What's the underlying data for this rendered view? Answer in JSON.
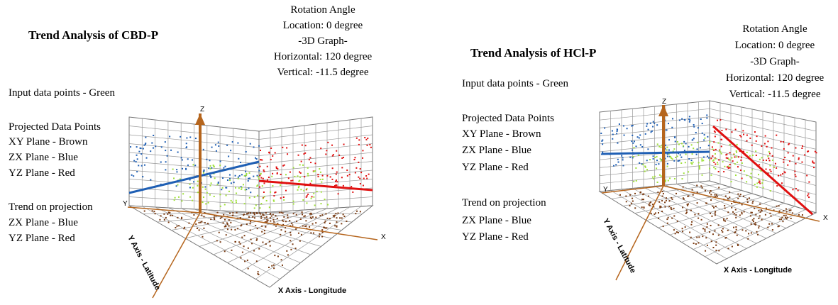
{
  "panels": [
    {
      "title": "Trend Analysis of CBD-P",
      "rotation": [
        "Rotation Angle",
        "Location: 0 degree",
        "-3D Graph-",
        "Horizontal: 120 degree",
        "Vertical: -11.5 degree"
      ],
      "legend": [
        "Input data points - Green",
        "Projected Data Points",
        "XY Plane - Brown",
        "ZX Plane - Blue",
        "YZ Plane - Red",
        "Trend on projection",
        "ZX Plane - Blue",
        "YZ Plane - Red"
      ],
      "x_label": "X Axis - Longitude",
      "y_label": "Y Axis - Latitude",
      "x": "X",
      "y": "Y",
      "z": "Z"
    },
    {
      "title": "Trend Analysis of HCl-P",
      "rotation": [
        "Rotation Angle",
        "Location: 0 degree",
        "-3D Graph-",
        "Horizontal: 120 degree",
        "Vertical: -11.5 degree"
      ],
      "legend": [
        "Input data points - Green",
        "Projected Data Points",
        "XY Plane - Brown",
        "ZX Plane - Blue",
        "YZ Plane - Red",
        "Trend on projection",
        "ZX Plane - Blue",
        "YZ Plane - Red"
      ],
      "x_label": "X Axis - Longitude",
      "y_label": "Y Axis - Latitude",
      "x": "X",
      "y": "Y",
      "z": "Z"
    }
  ]
}
